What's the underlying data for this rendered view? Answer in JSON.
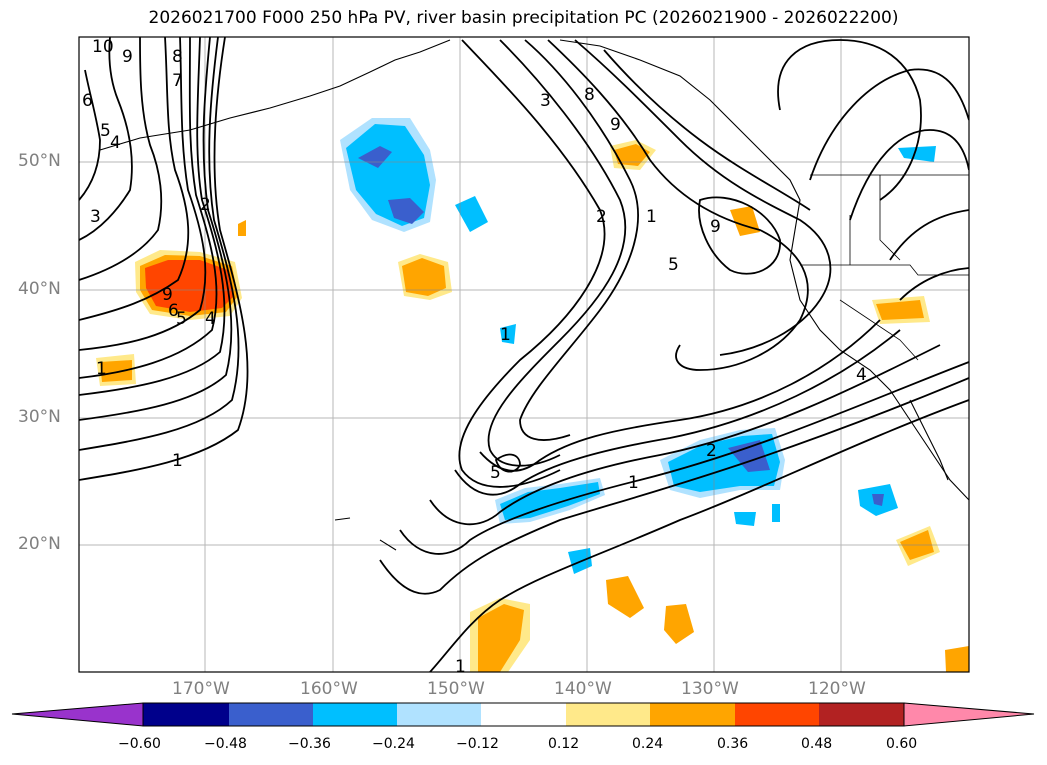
{
  "title": "2026021700 F000 250 hPa PV, river basin precipitation PC (2026021900 - 2026022200)",
  "map": {
    "lat_labels": [
      "50°N",
      "40°N",
      "30°N",
      "20°N"
    ],
    "lon_labels": [
      "170°W",
      "160°W",
      "150°W",
      "140°W",
      "130°W",
      "120°W"
    ],
    "contour_labels": [
      "10",
      "9",
      "8",
      "7",
      "6",
      "5",
      "4",
      "3",
      "2",
      "1",
      "9",
      "6",
      "5",
      "4",
      "3",
      "2",
      "1",
      "8",
      "9",
      "9",
      "5",
      "2",
      "1",
      "1",
      "5",
      "4",
      "1",
      "1"
    ]
  },
  "colorbar": {
    "ticks": [
      "−0.60",
      "−0.48",
      "−0.36",
      "−0.24",
      "−0.12",
      "0.12",
      "0.24",
      "0.36",
      "0.48",
      "0.60"
    ],
    "colors": [
      "#9933cc",
      "#00008b",
      "#3a5fcd",
      "#00bfff",
      "#b0e2ff",
      "#ffffff",
      "#ffe98a",
      "#ffa500",
      "#ff4500",
      "#b22222",
      "#ff88aa"
    ]
  }
}
